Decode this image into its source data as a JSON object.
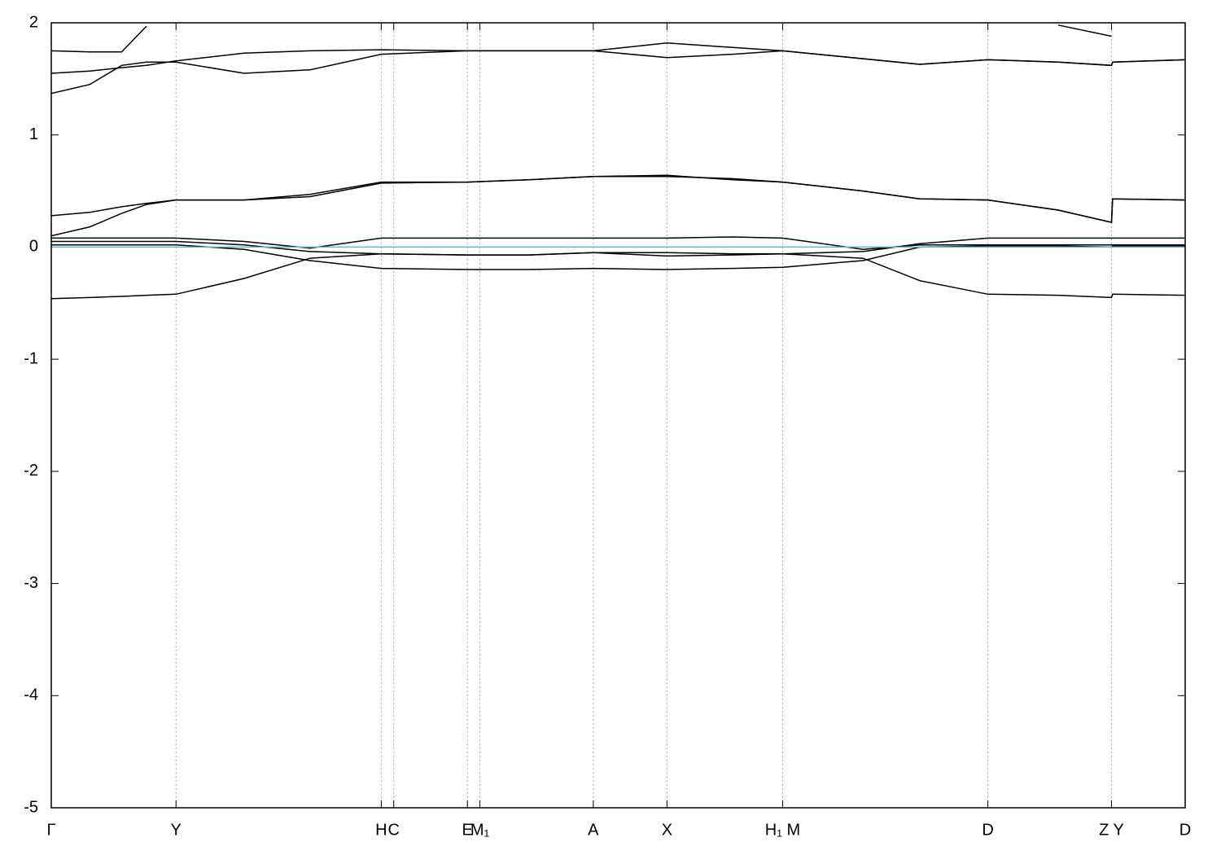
{
  "chart_data": {
    "type": "line",
    "x": [
      0,
      0.034,
      0.062,
      0.084,
      0.11,
      0.17,
      0.228,
      0.291,
      0.367,
      0.421,
      0.478,
      0.543,
      0.601,
      0.645,
      0.716,
      0.766,
      0.826,
      0.888,
      0.935,
      0.936,
      1.0
    ],
    "series": [
      {
        "color": "#000000",
        "values": [
          -0.46,
          -0.45,
          -0.44,
          -0.43,
          -0.42,
          -0.28,
          -0.1,
          -0.06,
          -0.07,
          -0.07,
          -0.05,
          -0.08,
          -0.07,
          -0.06,
          -0.1,
          -0.3,
          -0.42,
          -0.43,
          -0.45,
          -0.42,
          -0.43
        ]
      },
      {
        "color": "#000000",
        "values": [
          0.02,
          0.02,
          0.02,
          0.02,
          0.02,
          -0.02,
          -0.12,
          -0.19,
          -0.2,
          -0.2,
          -0.19,
          -0.2,
          -0.19,
          -0.18,
          -0.12,
          0.0,
          0.01,
          0.01,
          0.0,
          0.01,
          0.01
        ]
      },
      {
        "color": "#000000",
        "values": [
          0.05,
          0.05,
          0.05,
          0.05,
          0.05,
          0.02,
          -0.04,
          -0.06,
          -0.07,
          -0.07,
          -0.05,
          -0.05,
          -0.06,
          -0.06,
          -0.04,
          0.03,
          0.08,
          0.08,
          0.08,
          0.08,
          0.08
        ]
      },
      {
        "color": "#000000",
        "values": [
          0.08,
          0.08,
          0.08,
          0.08,
          0.08,
          0.05,
          -0.01,
          0.08,
          0.08,
          0.08,
          0.08,
          0.08,
          0.09,
          0.08,
          -0.02,
          0.02,
          0.02,
          0.02,
          0.02,
          0.02,
          0.02
        ]
      },
      {
        "color": "#000000",
        "values": [
          0.1,
          0.18,
          0.3,
          0.38,
          0.42,
          0.42,
          0.47,
          0.58,
          0.58,
          0.6,
          0.63,
          0.63,
          0.61,
          0.58,
          0.5,
          0.43,
          0.42,
          0.33,
          0.22,
          0.43,
          0.42
        ]
      },
      {
        "color": "#000000",
        "values": [
          0.28,
          0.31,
          0.36,
          0.39,
          0.42,
          0.42,
          0.45,
          0.57,
          0.58,
          0.6,
          0.63,
          0.64,
          0.6,
          0.58,
          0.5,
          0.43,
          0.42,
          0.33,
          0.22,
          0.43,
          0.42
        ]
      },
      {
        "color": "#000000",
        "values": [
          1.37,
          1.45,
          1.62,
          1.65,
          1.65,
          1.55,
          1.58,
          1.72,
          1.75,
          1.75,
          1.75,
          1.69,
          1.72,
          1.75,
          1.68,
          1.63,
          1.67,
          1.65,
          1.62,
          1.65,
          1.67
        ]
      },
      {
        "color": "#000000",
        "values": [
          1.55,
          1.57,
          1.6,
          1.62,
          1.66,
          1.73,
          1.75,
          1.76,
          1.75,
          1.75,
          1.75,
          1.82,
          1.78,
          1.75,
          1.68,
          1.63,
          1.67,
          1.65,
          1.62,
          1.65,
          1.67
        ]
      },
      {
        "color": "#000000",
        "values": [
          1.75,
          1.74,
          1.74,
          1.97,
          null,
          null,
          null,
          null,
          null,
          null,
          null,
          null,
          null,
          null,
          null,
          null,
          null,
          1.98,
          1.88,
          null,
          null
        ]
      },
      {
        "color": "#5bb8c8",
        "values": [
          0,
          0,
          0,
          0,
          0,
          0,
          0,
          0,
          0,
          0,
          0,
          0,
          0,
          0,
          0,
          0,
          0,
          0,
          0,
          0,
          0
        ]
      }
    ],
    "xlim": [
      0,
      1
    ],
    "xticks": [
      {
        "value": 0,
        "label": "Γ"
      },
      {
        "value": 0.11,
        "label": "Y"
      },
      {
        "value": 0.291,
        "label": "H"
      },
      {
        "value": 0.302,
        "label": "C"
      },
      {
        "value": 0.367,
        "label": "E"
      },
      {
        "value": 0.378,
        "label": "M₁"
      },
      {
        "value": 0.478,
        "label": "A"
      },
      {
        "value": 0.543,
        "label": "X"
      },
      {
        "value": 0.645,
        "label": "H₁ M"
      },
      {
        "value": 0.826,
        "label": "D"
      },
      {
        "value": 0.935,
        "label": "Z Y"
      },
      {
        "value": 1.0,
        "label": "D"
      }
    ],
    "ylim": [
      -5,
      2
    ],
    "yticks": [
      -5,
      -4,
      -3,
      -2,
      -1,
      0,
      1,
      2
    ],
    "grid": true
  }
}
